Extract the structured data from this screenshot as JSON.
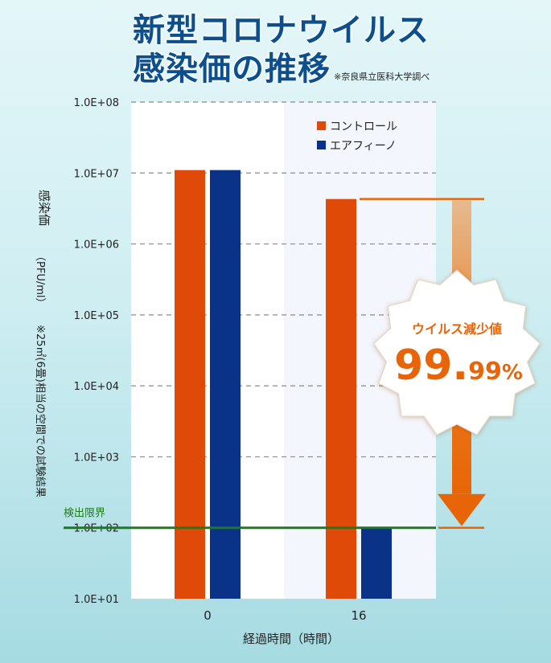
{
  "title": {
    "line1": "新型コロナウイルス",
    "line2": "感染価の推移",
    "source": "※奈良県立医科大学調べ"
  },
  "colors": {
    "control": "#e04a08",
    "treatment": "#0a3388",
    "limit": "#1e7a1e",
    "accent": "#e76508",
    "title": "#0d4f8c"
  },
  "chart_data": {
    "type": "bar",
    "scale": "log",
    "categories": [
      "0",
      "16"
    ],
    "series": [
      {
        "name": "コントロール",
        "values": [
          11000000,
          4300000
        ]
      },
      {
        "name": "エアフィーノ",
        "values": [
          11000000,
          100
        ]
      }
    ],
    "y_ticks": [
      "1.0E+01",
      "1.0E+02",
      "1.0E+03",
      "1.0E+04",
      "1.0E+05",
      "1.0E+06",
      "1.0E+07",
      "1.0E+08"
    ],
    "ylim": [
      10,
      100000000
    ],
    "xlabel": "経過時間（時間）",
    "ylabel": "感染価",
    "ylabel_unit": "（PFU/ml）",
    "ylabel_note": "※25㎡(6畳)相当の空間での試験結果",
    "detection_limit": {
      "label": "検出限界",
      "value": 100
    },
    "reduction": {
      "label": "ウイルス減少値",
      "value_main": "99.",
      "value_sub": "99",
      "unit": "%"
    },
    "legend_position": "top-right",
    "grid": true
  }
}
